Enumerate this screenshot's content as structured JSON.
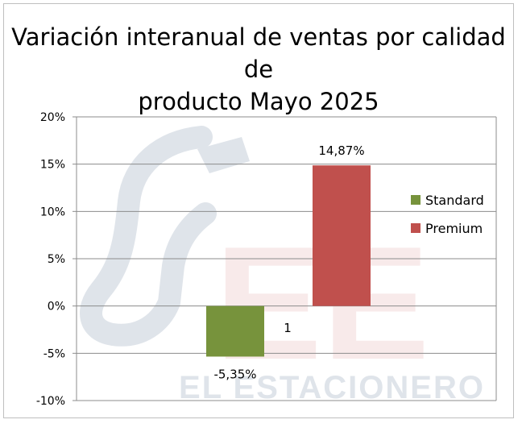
{
  "chart_data": {
    "type": "bar",
    "title_lines": [
      "Variación interanual de ventas por calidad de",
      "producto Mayo 2025"
    ],
    "categories": [
      "1"
    ],
    "series": [
      {
        "name": "Standard",
        "values": [
          -5.35
        ],
        "label": "-5,35%",
        "color": "#77933c"
      },
      {
        "name": "Premium",
        "values": [
          14.87
        ],
        "label": "14,87%",
        "color": "#c0504d"
      }
    ],
    "ylim": [
      -10,
      20
    ],
    "y_ticks": [
      {
        "value": 20,
        "label": "20%"
      },
      {
        "value": 15,
        "label": "15%"
      },
      {
        "value": 10,
        "label": "10%"
      },
      {
        "value": 5,
        "label": "5%"
      },
      {
        "value": 0,
        "label": "0%"
      },
      {
        "value": -5,
        "label": "-5%"
      },
      {
        "value": -10,
        "label": "-10%"
      }
    ],
    "grid": true,
    "legend_position": "right"
  },
  "watermark": {
    "text": "EL ESTACIONERO",
    "letters": "EE",
    "color": "#dfe4ea",
    "accent": "#f3d9d9"
  }
}
